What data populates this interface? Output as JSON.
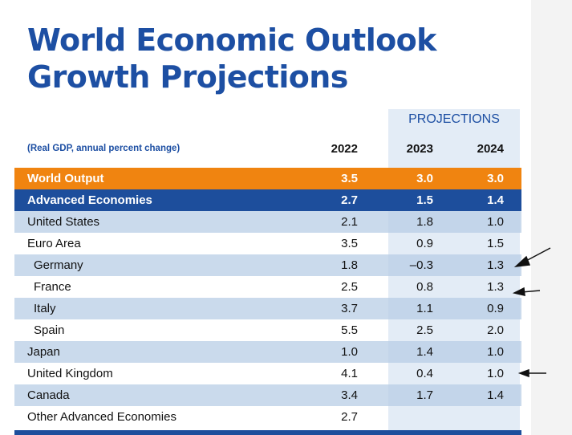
{
  "header": {
    "title_line1": "World Economic Outlook",
    "title_line2": "Growth Projections",
    "projections": "PROJECTIONS",
    "subtitle": "(Real GDP, annual percent change)"
  },
  "table": {
    "columns": [
      "2022",
      "2023",
      "2024"
    ],
    "rows": [
      [
        "World Output",
        "3.5",
        "3.0",
        "3.0"
      ],
      [
        "Advanced Economies",
        "2.7",
        "1.5",
        "1.4"
      ],
      [
        "United States",
        "2.1",
        "1.8",
        "1.0"
      ],
      [
        "Euro Area",
        "3.5",
        "0.9",
        "1.5"
      ],
      [
        "Germany",
        "1.8",
        "–0.3",
        "1.3"
      ],
      [
        "France",
        "2.5",
        "0.8",
        "1.3"
      ],
      [
        "Italy",
        "3.7",
        "1.1",
        "0.9"
      ],
      [
        "Spain",
        "5.5",
        "2.5",
        "2.0"
      ],
      [
        "Japan",
        "1.0",
        "1.4",
        "1.0"
      ],
      [
        "United Kingdom",
        "4.1",
        "0.4",
        "1.0"
      ],
      [
        "Canada",
        "3.4",
        "1.7",
        "1.4"
      ],
      [
        "Other Advanced Economies",
        "2.7",
        "",
        ""
      ]
    ]
  }
}
